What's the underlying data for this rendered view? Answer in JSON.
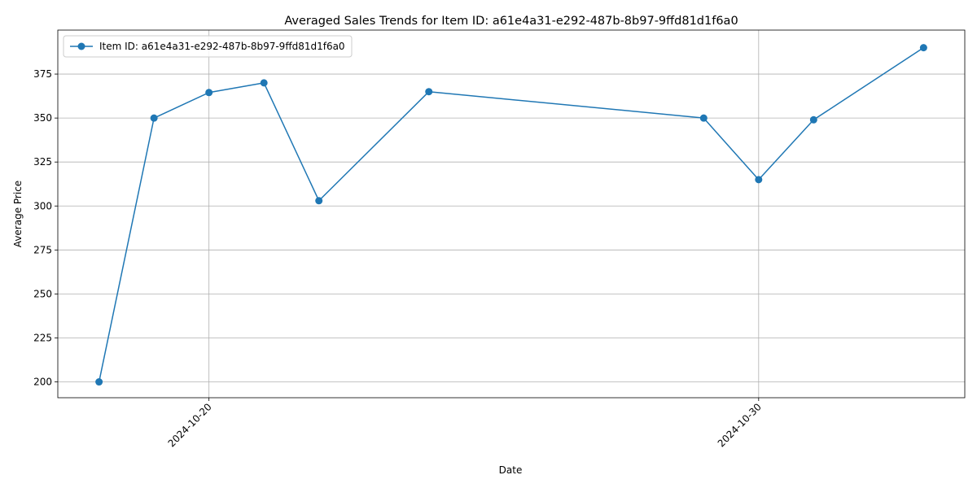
{
  "chart_data": {
    "type": "line",
    "title": "Averaged Sales Trends for Item ID: a61e4a31-e292-487b-8b97-9ffd81d1f6a0",
    "xlabel": "Date",
    "ylabel": "Average Price",
    "x_ticks": [
      "2024-10-20",
      "2024-10-30"
    ],
    "y_ticks": [
      200,
      225,
      250,
      275,
      300,
      325,
      350,
      375
    ],
    "ylim": [
      191,
      400
    ],
    "grid": true,
    "legend_position": "upper-left",
    "series": [
      {
        "name": "Item ID: a61e4a31-e292-487b-8b97-9ffd81d1f6a0",
        "color": "#1f77b4",
        "marker": "circle",
        "points": [
          {
            "x": "2024-10-18",
            "y": 200
          },
          {
            "x": "2024-10-19",
            "y": 350
          },
          {
            "x": "2024-10-20",
            "y": 364.5
          },
          {
            "x": "2024-10-21",
            "y": 370
          },
          {
            "x": "2024-10-22",
            "y": 303
          },
          {
            "x": "2024-10-24",
            "y": 365
          },
          {
            "x": "2024-10-29",
            "y": 350
          },
          {
            "x": "2024-10-30",
            "y": 315
          },
          {
            "x": "2024-10-31",
            "y": 349
          },
          {
            "x": "2024-11-02",
            "y": 390
          }
        ]
      }
    ]
  }
}
